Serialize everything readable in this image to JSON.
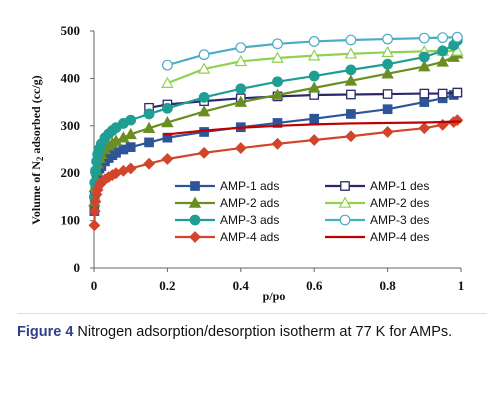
{
  "chart_data": {
    "type": "line",
    "title": "",
    "xlabel": "p/po",
    "ylabel": "Volume of N2 adsorbed (cc/g)",
    "xlim": [
      0,
      1
    ],
    "ylim": [
      0,
      500
    ],
    "xticks": [
      "0",
      "0.2",
      "0.4",
      "0.6",
      "0.8",
      "1"
    ],
    "yticks": [
      "0",
      "100",
      "200",
      "300",
      "400",
      "500"
    ],
    "grid": false,
    "legend_position": "bottom-right",
    "series": [
      {
        "name": "AMP-1 ads",
        "color": "#2e5597",
        "marker": "square-filled",
        "x": [
          0.001,
          0.002,
          0.004,
          0.007,
          0.01,
          0.015,
          0.02,
          0.03,
          0.04,
          0.05,
          0.06,
          0.08,
          0.1,
          0.15,
          0.2,
          0.3,
          0.4,
          0.5,
          0.6,
          0.7,
          0.8,
          0.9,
          0.95,
          0.98,
          0.99
        ],
        "y": [
          120,
          150,
          170,
          185,
          200,
          210,
          215,
          225,
          232,
          238,
          243,
          250,
          255,
          265,
          275,
          287,
          297,
          306,
          315,
          325,
          335,
          350,
          358,
          365,
          370
        ]
      },
      {
        "name": "AMP-1 des",
        "color": "#2a2a6a",
        "marker": "square-open",
        "x": [
          0.15,
          0.2,
          0.3,
          0.4,
          0.5,
          0.6,
          0.7,
          0.8,
          0.9,
          0.95,
          0.99
        ],
        "y": [
          338,
          345,
          352,
          358,
          362,
          365,
          366,
          367,
          368,
          368,
          370
        ]
      },
      {
        "name": "AMP-2 ads",
        "color": "#6b8e23",
        "marker": "triangle-filled",
        "x": [
          0.001,
          0.002,
          0.004,
          0.007,
          0.01,
          0.015,
          0.02,
          0.03,
          0.04,
          0.05,
          0.06,
          0.08,
          0.1,
          0.15,
          0.2,
          0.3,
          0.4,
          0.5,
          0.6,
          0.7,
          0.8,
          0.9,
          0.95,
          0.98,
          0.99
        ],
        "y": [
          140,
          170,
          190,
          205,
          220,
          232,
          240,
          250,
          258,
          263,
          268,
          275,
          282,
          295,
          307,
          330,
          350,
          365,
          380,
          395,
          410,
          425,
          435,
          445,
          452
        ]
      },
      {
        "name": "AMP-2 des",
        "color": "#92d050",
        "marker": "triangle-open",
        "x": [
          0.2,
          0.3,
          0.4,
          0.5,
          0.6,
          0.7,
          0.8,
          0.9,
          0.95,
          0.99
        ],
        "y": [
          390,
          420,
          436,
          443,
          448,
          452,
          455,
          457,
          458,
          458
        ]
      },
      {
        "name": "AMP-3 ads",
        "color": "#1f9e94",
        "marker": "circle-filled",
        "x": [
          0.001,
          0.002,
          0.004,
          0.007,
          0.01,
          0.015,
          0.02,
          0.03,
          0.04,
          0.05,
          0.06,
          0.08,
          0.1,
          0.15,
          0.2,
          0.3,
          0.4,
          0.5,
          0.6,
          0.7,
          0.8,
          0.9,
          0.95,
          0.98,
          0.99
        ],
        "y": [
          150,
          180,
          205,
          225,
          240,
          252,
          262,
          275,
          283,
          290,
          296,
          305,
          312,
          325,
          337,
          360,
          378,
          393,
          405,
          418,
          430,
          445,
          458,
          470,
          480
        ]
      },
      {
        "name": "AMP-3 des",
        "color": "#4bacc6",
        "marker": "circle-open",
        "x": [
          0.2,
          0.3,
          0.4,
          0.5,
          0.6,
          0.7,
          0.8,
          0.9,
          0.95,
          0.99
        ],
        "y": [
          428,
          450,
          465,
          473,
          478,
          481,
          483,
          485,
          486,
          487
        ]
      },
      {
        "name": "AMP-4 ads",
        "color": "#d2452a",
        "marker": "diamond-filled",
        "x": [
          0.001,
          0.002,
          0.004,
          0.007,
          0.01,
          0.015,
          0.02,
          0.03,
          0.04,
          0.05,
          0.06,
          0.08,
          0.1,
          0.15,
          0.2,
          0.3,
          0.4,
          0.5,
          0.6,
          0.7,
          0.8,
          0.9,
          0.95,
          0.98,
          0.99
        ],
        "y": [
          90,
          120,
          140,
          155,
          165,
          175,
          180,
          187,
          192,
          196,
          200,
          205,
          210,
          220,
          230,
          243,
          253,
          262,
          270,
          278,
          287,
          295,
          302,
          308,
          312
        ]
      },
      {
        "name": "AMP-4 des",
        "color": "#c00000",
        "marker": "dash",
        "x": [
          0.2,
          0.3,
          0.4,
          0.5,
          0.6,
          0.7,
          0.8,
          0.9,
          0.95,
          0.99
        ],
        "y": [
          282,
          290,
          296,
          300,
          303,
          305,
          306,
          307,
          308,
          309
        ]
      }
    ]
  },
  "caption": {
    "label": "Figure 4",
    "text": " Nitrogen adsorption/desorption isotherm at 77 K for AMPs."
  }
}
